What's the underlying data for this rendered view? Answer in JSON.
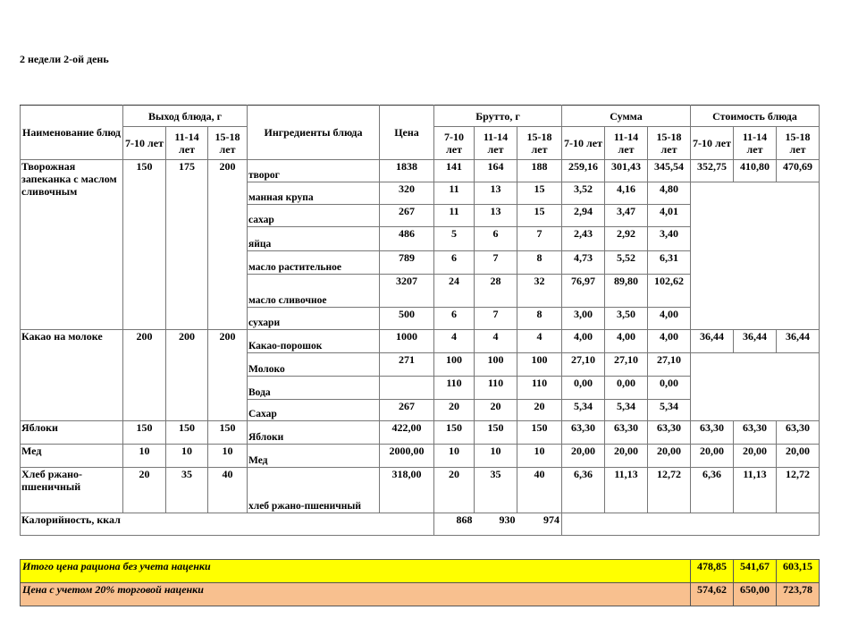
{
  "title": "2 недели 2-ой день",
  "header": {
    "dish": "Наименование блюд",
    "yield": "Выход блюда, г",
    "ingredients": "Ингредиенты блюда",
    "price": "Цена",
    "brutto": "Брутто, г",
    "sum": "Сумма",
    "cost": "Стоимость блюда",
    "ages": [
      "7-10 лет",
      "11-14 лет",
      "15-18 лет"
    ]
  },
  "dishes": [
    {
      "name": "Творожная запеканка с маслом сливочным",
      "yield": [
        "150",
        "175",
        "200"
      ],
      "cost": [
        "352,75",
        "410,80",
        "470,69"
      ],
      "ingredients": [
        {
          "name": "творог",
          "price": "1838",
          "brutto": [
            "141",
            "164",
            "188"
          ],
          "sum": [
            "259,16",
            "301,43",
            "345,54"
          ]
        },
        {
          "name": "манная крупа",
          "price": "320",
          "brutto": [
            "11",
            "13",
            "15"
          ],
          "sum": [
            "3,52",
            "4,16",
            "4,80"
          ]
        },
        {
          "name": "сахар",
          "price": "267",
          "brutto": [
            "11",
            "13",
            "15"
          ],
          "sum": [
            "2,94",
            "3,47",
            "4,01"
          ]
        },
        {
          "name": "яйца",
          "price": "486",
          "brutto": [
            "5",
            "6",
            "7"
          ],
          "sum": [
            "2,43",
            "2,92",
            "3,40"
          ]
        },
        {
          "name": "масло растительное",
          "price": "789",
          "brutto": [
            "6",
            "7",
            "8"
          ],
          "sum": [
            "4,73",
            "5,52",
            "6,31"
          ]
        },
        {
          "name": "масло сливочное",
          "price": "3207",
          "brutto": [
            "24",
            "28",
            "32"
          ],
          "sum": [
            "76,97",
            "89,80",
            "102,62"
          ]
        },
        {
          "name": "сухари",
          "price": "500",
          "brutto": [
            "6",
            "7",
            "8"
          ],
          "sum": [
            "3,00",
            "3,50",
            "4,00"
          ]
        }
      ]
    },
    {
      "name": "Какао на молоке",
      "yield": [
        "200",
        "200",
        "200"
      ],
      "cost": [
        "36,44",
        "36,44",
        "36,44"
      ],
      "ingredients": [
        {
          "name": "Какао-порошок",
          "price": "1000",
          "brutto": [
            "4",
            "4",
            "4"
          ],
          "sum": [
            "4,00",
            "4,00",
            "4,00"
          ]
        },
        {
          "name": "Молоко",
          "price": "271",
          "brutto": [
            "100",
            "100",
            "100"
          ],
          "sum": [
            "27,10",
            "27,10",
            "27,10"
          ]
        },
        {
          "name": "Вода",
          "price": "",
          "brutto": [
            "110",
            "110",
            "110"
          ],
          "sum": [
            "0,00",
            "0,00",
            "0,00"
          ]
        },
        {
          "name": "Сахар",
          "price": "267",
          "brutto": [
            "20",
            "20",
            "20"
          ],
          "sum": [
            "5,34",
            "5,34",
            "5,34"
          ]
        }
      ]
    },
    {
      "name": "Яблоки",
      "yield": [
        "150",
        "150",
        "150"
      ],
      "cost": [
        "63,30",
        "63,30",
        "63,30"
      ],
      "ingredients": [
        {
          "name": "Яблоки",
          "price": "422,00",
          "brutto": [
            "150",
            "150",
            "150"
          ],
          "sum": [
            "63,30",
            "63,30",
            "63,30"
          ]
        }
      ]
    },
    {
      "name": "Мед",
      "yield": [
        "10",
        "10",
        "10"
      ],
      "cost": [
        "20,00",
        "20,00",
        "20,00"
      ],
      "ingredients": [
        {
          "name": "Мед",
          "price": "2000,00",
          "brutto": [
            "10",
            "10",
            "10"
          ],
          "sum": [
            "20,00",
            "20,00",
            "20,00"
          ]
        }
      ]
    },
    {
      "name": "Хлеб ржано-пшеничный",
      "yield": [
        "20",
        "35",
        "40"
      ],
      "cost": [
        "6,36",
        "11,13",
        "12,72"
      ],
      "ingredients": [
        {
          "name": "хлеб ржано-пшеничный",
          "price": "318,00",
          "brutto": [
            "20",
            "35",
            "40"
          ],
          "sum": [
            "6,36",
            "11,13",
            "12,72"
          ]
        }
      ]
    }
  ],
  "calories": {
    "label": "Калорийность, ккал",
    "values": [
      "868",
      "930",
      "974"
    ]
  },
  "totals": [
    {
      "label": "Итого цена рациона без учета наценки",
      "values": [
        "478,85",
        "541,67",
        "603,15"
      ],
      "color": "#ffff00"
    },
    {
      "label": "Цена с учетом 20% торговой наценки",
      "values": [
        "574,62",
        "650,00",
        "723,78"
      ],
      "color": "#f8c08f"
    }
  ]
}
